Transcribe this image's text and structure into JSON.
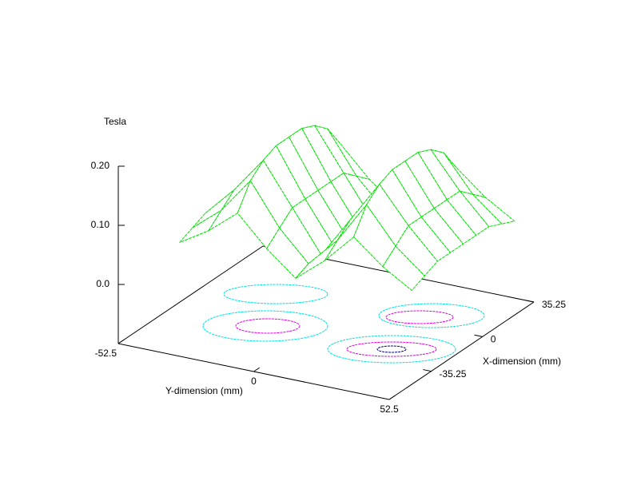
{
  "chart_data": {
    "type": "surface",
    "zlabel": "Tesla",
    "xlabel": "X-dimension (mm)",
    "ylabel": "Y-dimension (mm)",
    "color": "#00e000",
    "x": [
      -35.25,
      -26.4375,
      -17.625,
      -8.8125,
      0,
      8.8125,
      17.625,
      26.4375,
      35.25
    ],
    "y": [
      -45,
      -33.75,
      -22.5,
      -11.25,
      0,
      11.25,
      22.5,
      33.75,
      45
    ],
    "z": [
      [
        0.03,
        0.04,
        0.05,
        0.05,
        0.05,
        0.05,
        0.05,
        0.04,
        0.03
      ],
      [
        0.06,
        0.08,
        0.1,
        0.1,
        0.1,
        0.1,
        0.1,
        0.08,
        0.06
      ],
      [
        0.1,
        0.14,
        0.16,
        0.17,
        0.17,
        0.17,
        0.16,
        0.14,
        0.1
      ],
      [
        0.05,
        0.07,
        0.09,
        0.09,
        0.09,
        0.09,
        0.09,
        0.07,
        0.05
      ],
      [
        0.01,
        0.02,
        0.02,
        0.02,
        0.02,
        0.02,
        0.02,
        0.02,
        0.01
      ],
      [
        0.05,
        0.07,
        0.09,
        0.09,
        0.09,
        0.09,
        0.09,
        0.07,
        0.05
      ],
      [
        0.1,
        0.14,
        0.16,
        0.17,
        0.17,
        0.17,
        0.16,
        0.14,
        0.1
      ],
      [
        0.06,
        0.08,
        0.1,
        0.1,
        0.1,
        0.1,
        0.1,
        0.08,
        0.06
      ],
      [
        0.03,
        0.04,
        0.05,
        0.05,
        0.05,
        0.05,
        0.05,
        0.04,
        0.03
      ]
    ],
    "xlim": [
      -64,
      35.25
    ],
    "xticks": [
      -35.25,
      0,
      35.25
    ],
    "ylim": [
      -52.5,
      52.5
    ],
    "yticks": [
      -52.5,
      0,
      52.5
    ],
    "zlim": [
      -0.1,
      0.2
    ],
    "zticks": [
      {
        "value": 0,
        "label": "0.0"
      },
      {
        "value": 0.1,
        "label": "0.10"
      },
      {
        "value": 0.2,
        "label": "0.20"
      }
    ]
  }
}
